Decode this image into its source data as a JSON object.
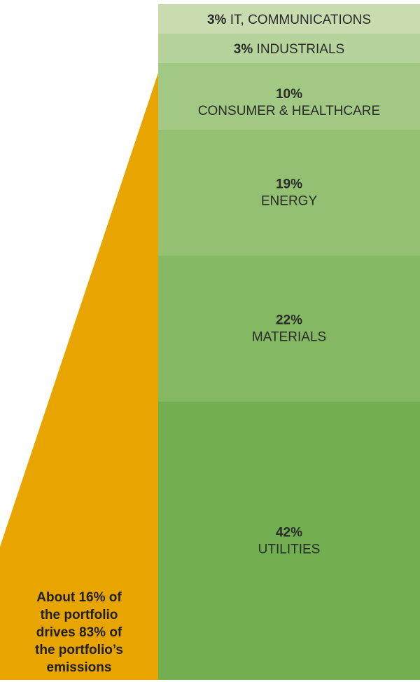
{
  "chart_data": {
    "type": "stacked-bar",
    "series": [
      {
        "percent": 3,
        "label": "IT, COMMUNICATIONS",
        "layout": "inline",
        "color": "#c8dcb0"
      },
      {
        "percent": 3,
        "label": "INDUSTRIALS",
        "layout": "inline",
        "color": "#b5d39a"
      },
      {
        "percent": 10,
        "label": "CONSUMER & HEALTHCARE",
        "layout": "stacked",
        "color": "#a2c983"
      },
      {
        "percent": 19,
        "label": "ENERGY",
        "layout": "stacked",
        "color": "#93c071"
      },
      {
        "percent": 22,
        "label": "MATERIALS",
        "layout": "stacked",
        "color": "#84b862"
      },
      {
        "percent": 42,
        "label": "UTILITIES",
        "layout": "stacked",
        "color": "#72af50"
      }
    ],
    "highlight_color": "#e8a500"
  },
  "callout": {
    "lines": [
      "About 16% of",
      "the portfolio",
      "drives 83% of",
      "the portfolio’s",
      "emissions"
    ]
  }
}
